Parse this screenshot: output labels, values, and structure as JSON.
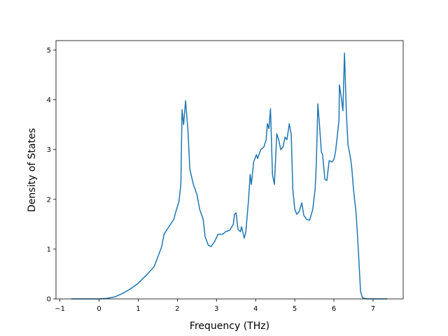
{
  "chart_data": {
    "type": "line",
    "xlabel": "Frequency (THz)",
    "ylabel": "Density of States",
    "x": [
      -0.71,
      0,
      0.2,
      0.4,
      0.6,
      0.8,
      0.98,
      1.2,
      1.41,
      1.6,
      1.66,
      1.91,
      1.96,
      2.04,
      2.09,
      2.12,
      2.16,
      2.21,
      2.27,
      2.32,
      2.41,
      2.5,
      2.57,
      2.66,
      2.71,
      2.79,
      2.86,
      2.95,
      3.04,
      3.16,
      3.23,
      3.34,
      3.43,
      3.46,
      3.5,
      3.55,
      3.61,
      3.64,
      3.71,
      3.75,
      3.82,
      3.86,
      3.89,
      3.95,
      4.02,
      4.05,
      4.13,
      4.21,
      4.27,
      4.3,
      4.34,
      4.38,
      4.43,
      4.48,
      4.54,
      4.59,
      4.64,
      4.7,
      4.75,
      4.8,
      4.86,
      4.91,
      4.95,
      5.0,
      5.05,
      5.11,
      5.18,
      5.23,
      5.3,
      5.38,
      5.46,
      5.52,
      5.55,
      5.59,
      5.64,
      5.68,
      5.71,
      5.77,
      5.82,
      5.88,
      5.95,
      6.0,
      6.04,
      6.09,
      6.13,
      6.14,
      6.18,
      6.23,
      6.27,
      6.32,
      6.36,
      6.43,
      6.46,
      6.5,
      6.57,
      6.63,
      6.68,
      6.73,
      6.86,
      7.36
    ],
    "values": [
      0,
      0,
      0.01,
      0.04,
      0.11,
      0.2,
      0.3,
      0.47,
      0.65,
      1.05,
      1.3,
      1.6,
      1.75,
      1.95,
      2.3,
      3.8,
      3.5,
      3.98,
      3.4,
      2.6,
      2.3,
      2.1,
      1.8,
      1.6,
      1.25,
      1.08,
      1.05,
      1.15,
      1.3,
      1.3,
      1.35,
      1.38,
      1.5,
      1.7,
      1.73,
      1.4,
      1.35,
      1.45,
      1.22,
      1.35,
      2.0,
      2.5,
      2.3,
      2.75,
      2.9,
      2.82,
      3.0,
      3.05,
      3.2,
      3.52,
      3.42,
      3.82,
      2.5,
      2.3,
      3.32,
      3.2,
      3.0,
      3.05,
      3.25,
      3.2,
      3.52,
      3.3,
      2.2,
      1.8,
      1.7,
      1.75,
      1.93,
      1.68,
      1.6,
      1.58,
      1.8,
      2.2,
      2.7,
      3.92,
      3.4,
      2.95,
      2.9,
      2.4,
      2.38,
      2.78,
      2.75,
      2.8,
      2.95,
      3.3,
      3.6,
      4.3,
      4.1,
      3.78,
      4.94,
      3.7,
      3.1,
      2.8,
      2.6,
      2.2,
      1.7,
      0.9,
      0.15,
      0.02,
      0,
      0
    ],
    "color": "#1f77b4",
    "xlim": [
      -1.1,
      7.77
    ],
    "ylim": [
      0,
      5.19
    ],
    "xticks": [
      {
        "value": -1,
        "label": "−1"
      },
      0,
      1,
      2,
      3,
      4,
      5,
      6,
      7
    ],
    "yticks": [
      0,
      1,
      2,
      3,
      4,
      5
    ]
  }
}
